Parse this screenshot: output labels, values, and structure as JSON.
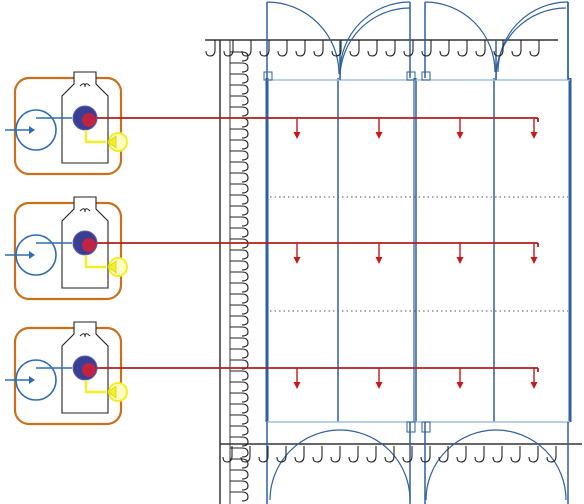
{
  "diagram": {
    "units": [
      {
        "id": "unit-1"
      },
      {
        "id": "unit-2"
      },
      {
        "id": "unit-3"
      }
    ],
    "bays": 4,
    "droppers_per_line": 4,
    "colors": {
      "unit_frame": "#c8701e",
      "pump": "#2e6db4",
      "motor_body": "#3b3f93",
      "motor_core": "#d0203a",
      "fan": "#f2ef2a",
      "supply_line": "#b01e1e",
      "arrow": "#c81818",
      "structure": "#2f5f9e",
      "frame_line": "#333333"
    },
    "icons": [
      "pump-icon",
      "motor-icon",
      "fan-icon",
      "hook-icon",
      "arrow-down-icon"
    ]
  }
}
